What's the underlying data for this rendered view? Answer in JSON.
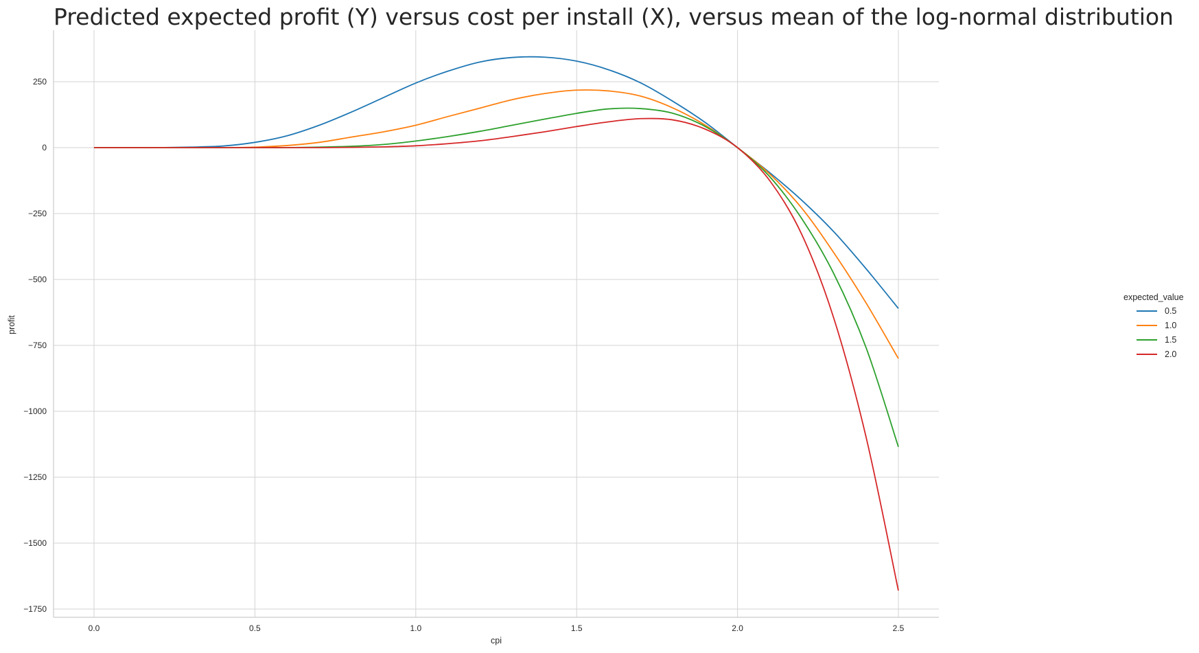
{
  "chart_data": {
    "type": "line",
    "title": "Predicted expected profit (Y) versus cost per install (X), versus mean of the log-normal distribution",
    "xlabel": "cpi",
    "ylabel": "profit",
    "xlim": [
      -0.125,
      2.625
    ],
    "ylim": [
      -1785,
      430
    ],
    "xticks": [
      0.0,
      0.5,
      1.0,
      1.5,
      2.0,
      2.5
    ],
    "xtick_labels": [
      "0.0",
      "0.5",
      "1.0",
      "1.5",
      "2.0",
      "2.5"
    ],
    "yticks": [
      250,
      0,
      -250,
      -500,
      -750,
      -1000,
      -1250,
      -1500,
      -1750
    ],
    "ytick_labels": [
      "250",
      "0",
      "−250",
      "−500",
      "−750",
      "−1000",
      "−1250",
      "−1500",
      "−1750"
    ],
    "grid": true,
    "legend": {
      "title": "expected_value",
      "placement": "right"
    },
    "x": [
      0.0,
      0.1,
      0.2,
      0.3,
      0.4,
      0.5,
      0.6,
      0.7,
      0.8,
      0.9,
      1.0,
      1.1,
      1.2,
      1.3,
      1.4,
      1.5,
      1.6,
      1.7,
      1.8,
      1.9,
      2.0,
      2.1,
      2.2,
      2.3,
      2.4,
      2.5
    ],
    "series": [
      {
        "name": "0.5",
        "color": "#1f77b4",
        "values": [
          0,
          0,
          0,
          2,
          6,
          20,
          45,
          85,
          135,
          190,
          245,
          290,
          325,
          342,
          343,
          328,
          295,
          245,
          175,
          95,
          0,
          -95,
          -200,
          -320,
          -460,
          -610
        ]
      },
      {
        "name": "1.0",
        "color": "#ff7f0e",
        "values": [
          0,
          0,
          0,
          0,
          0,
          2,
          8,
          20,
          40,
          60,
          85,
          118,
          150,
          182,
          205,
          218,
          215,
          195,
          150,
          85,
          0,
          -100,
          -230,
          -400,
          -590,
          -800
        ]
      },
      {
        "name": "1.5",
        "color": "#2ca02c",
        "values": [
          0,
          0,
          0,
          0,
          0,
          0,
          0,
          2,
          5,
          12,
          25,
          42,
          62,
          85,
          108,
          130,
          147,
          148,
          130,
          80,
          0,
          -110,
          -270,
          -480,
          -760,
          -1135
        ]
      },
      {
        "name": "2.0",
        "color": "#d62728",
        "values": [
          0,
          0,
          0,
          0,
          0,
          0,
          0,
          0,
          1,
          3,
          7,
          15,
          26,
          42,
          60,
          80,
          98,
          110,
          105,
          70,
          0,
          -125,
          -330,
          -650,
          -1100,
          -1680
        ]
      }
    ]
  }
}
